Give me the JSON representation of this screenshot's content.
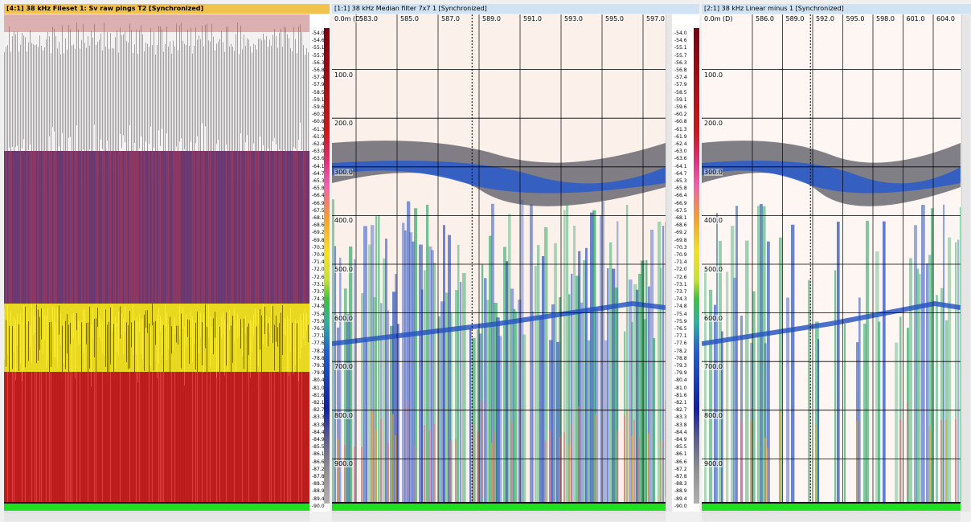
{
  "panels": [
    {
      "title": "[4:1] 38 kHz Fileset 1: Sv raw pings T2 [Synchronized]",
      "color_scale": [
        "-54.0",
        "-54.6",
        "-55.1",
        "-55.7",
        "-56.3",
        "-56.8",
        "-57.4",
        "-57.9",
        "-58.5",
        "-59.1",
        "-59.6",
        "-60.2",
        "-60.8",
        "-61.3",
        "-61.9",
        "-62.4",
        "-63.0",
        "-63.6",
        "-64.1",
        "-64.7",
        "-65.3",
        "-65.8",
        "-66.4",
        "-66.9",
        "-67.5",
        "-68.1",
        "-68.6",
        "-69.2",
        "-69.8",
        "-70.3",
        "-70.9",
        "-71.4",
        "-72.0",
        "-72.6",
        "-73.1",
        "-73.7",
        "-74.3",
        "-74.8",
        "-75.4",
        "-75.9",
        "-76.5",
        "-77.1",
        "-77.6",
        "-78.2",
        "-78.8",
        "-79.3",
        "-79.9",
        "-80.4",
        "-81.0",
        "-81.6",
        "-82.1",
        "-82.7",
        "-83.3",
        "-83.8",
        "-84.4",
        "-84.9",
        "-85.5",
        "-86.1",
        "-86.6",
        "-87.2",
        "-87.8",
        "-88.3",
        "-88.9",
        "-89.4",
        "-90.0"
      ]
    },
    {
      "title": "[1:1] 38 kHz Median filter 7x7 1 [Synchronized]",
      "depth_labels": [
        "0.0m (D)",
        "100.0",
        "200.0",
        "300.0",
        "400.0",
        "500.0",
        "600.0",
        "700.0",
        "800.0",
        "900.0"
      ],
      "x_labels": [
        "583.0",
        "585.0",
        "587.0",
        "589.0",
        "591.0",
        "593.0",
        "595.0",
        "597.0"
      ],
      "color_scale": [
        "-54.0",
        "-54.6",
        "-55.1",
        "-55.7",
        "-56.3",
        "-56.8",
        "-57.4",
        "-57.9",
        "-58.5",
        "-59.1",
        "-59.6",
        "-60.2",
        "-60.8",
        "-61.3",
        "-61.9",
        "-62.4",
        "-63.0",
        "-63.6",
        "-64.1",
        "-64.7",
        "-65.3",
        "-65.8",
        "-66.4",
        "-66.9",
        "-67.5",
        "-68.1",
        "-68.6",
        "-69.2",
        "-69.8",
        "-70.3",
        "-70.9",
        "-71.4",
        "-72.0",
        "-72.6",
        "-73.1",
        "-73.7",
        "-74.3",
        "-74.8",
        "-75.4",
        "-75.9",
        "-76.5",
        "-77.1",
        "-77.6",
        "-78.2",
        "-78.8",
        "-79.3",
        "-79.9",
        "-80.4",
        "-81.0",
        "-81.6",
        "-82.1",
        "-82.7",
        "-83.3",
        "-83.8",
        "-84.4",
        "-84.9",
        "-85.5",
        "-86.1",
        "-86.6",
        "-87.2",
        "-87.8",
        "-88.3",
        "-88.9",
        "-89.4",
        "-90.0"
      ]
    },
    {
      "title": "[2:1] 38 kHz Linear minus 1 [Synchronized]",
      "depth_labels": [
        "0.0m (D)",
        "100.0",
        "200.0",
        "300.0",
        "400.0",
        "500.0",
        "600.0",
        "700.0",
        "800.0",
        "900.0"
      ],
      "x_labels": [
        "586.0",
        "589.0",
        "592.0",
        "595.0",
        "598.0",
        "601.0",
        "604.0"
      ]
    }
  ]
}
